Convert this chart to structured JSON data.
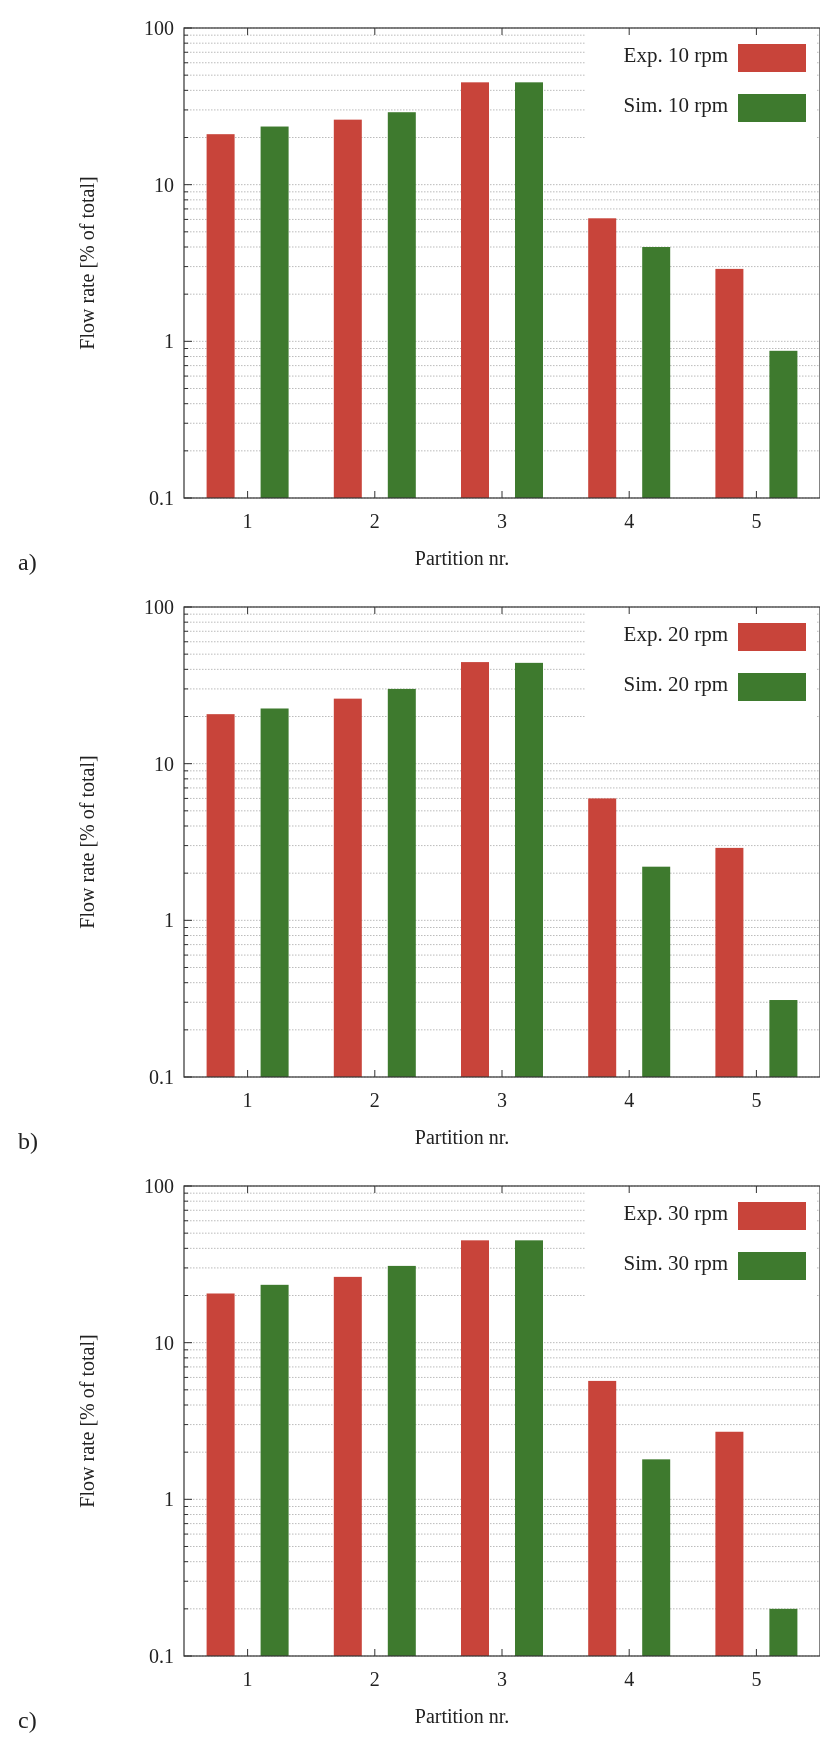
{
  "chart_data": [
    {
      "type": "bar",
      "categories": [
        "1",
        "2",
        "3",
        "4",
        "5"
      ],
      "xlabel": "Partition nr.",
      "ylabel": "Flow rate [% of total]",
      "log": true,
      "ylim": [
        0.1,
        100
      ],
      "yticks": [
        0.1,
        {
          "value": 0.2,
          "label": null
        },
        {
          "value": 0.3,
          "label": null
        },
        {
          "value": 0.4,
          "label": null
        },
        {
          "value": 0.5,
          "label": null
        },
        {
          "value": 0.6,
          "label": null
        },
        {
          "value": 0.7,
          "label": null
        },
        {
          "value": 0.8,
          "label": null
        },
        {
          "value": 0.9,
          "label": null
        },
        1,
        {
          "value": 2,
          "label": null
        },
        {
          "value": 3,
          "label": null
        },
        {
          "value": 4,
          "label": null
        },
        {
          "value": 5,
          "label": null
        },
        {
          "value": 6,
          "label": null
        },
        {
          "value": 7,
          "label": null
        },
        {
          "value": 8,
          "label": null
        },
        {
          "value": 9,
          "label": null
        },
        10,
        {
          "value": 20,
          "label": null
        },
        {
          "value": 30,
          "label": null
        },
        {
          "value": 40,
          "label": null
        },
        {
          "value": 50,
          "label": null
        },
        {
          "value": 60,
          "label": null
        },
        {
          "value": 70,
          "label": null
        },
        {
          "value": 80,
          "label": null
        },
        {
          "value": 90,
          "label": null
        },
        100
      ],
      "grid": "y",
      "legend": "top right",
      "annotations": [
        "a)"
      ],
      "series": [
        {
          "name": "Exp. 10 rpm",
          "color": "#c8443a",
          "values": [
            21,
            26,
            45,
            6.1,
            2.9
          ]
        },
        {
          "name": "Sim. 10 rpm",
          "color": "#3e7a2e",
          "values": [
            23.5,
            29,
            45,
            4.0,
            0.87
          ]
        }
      ]
    },
    {
      "type": "bar",
      "categories": [
        "1",
        "2",
        "3",
        "4",
        "5"
      ],
      "xlabel": "Partition nr.",
      "ylabel": "Flow rate [% of total]",
      "log": true,
      "ylim": [
        0.1,
        100
      ],
      "yticks": [
        0.1,
        {
          "value": 0.2,
          "label": null
        },
        {
          "value": 0.3,
          "label": null
        },
        {
          "value": 0.4,
          "label": null
        },
        {
          "value": 0.5,
          "label": null
        },
        {
          "value": 0.6,
          "label": null
        },
        {
          "value": 0.7,
          "label": null
        },
        {
          "value": 0.8,
          "label": null
        },
        {
          "value": 0.9,
          "label": null
        },
        1,
        {
          "value": 2,
          "label": null
        },
        {
          "value": 3,
          "label": null
        },
        {
          "value": 4,
          "label": null
        },
        {
          "value": 5,
          "label": null
        },
        {
          "value": 6,
          "label": null
        },
        {
          "value": 7,
          "label": null
        },
        {
          "value": 8,
          "label": null
        },
        {
          "value": 9,
          "label": null
        },
        10,
        {
          "value": 20,
          "label": null
        },
        {
          "value": 30,
          "label": null
        },
        {
          "value": 40,
          "label": null
        },
        {
          "value": 50,
          "label": null
        },
        {
          "value": 60,
          "label": null
        },
        {
          "value": 70,
          "label": null
        },
        {
          "value": 80,
          "label": null
        },
        {
          "value": 90,
          "label": null
        },
        100
      ],
      "grid": "y",
      "legend": "top right",
      "annotations": [
        "b)"
      ],
      "series": [
        {
          "name": "Exp. 20 rpm",
          "color": "#c8443a",
          "values": [
            20.7,
            26,
            44.5,
            6.0,
            2.9
          ]
        },
        {
          "name": "Sim. 20 rpm",
          "color": "#3e7a2e",
          "values": [
            22.5,
            30,
            44,
            2.2,
            0.31
          ]
        }
      ]
    },
    {
      "type": "bar",
      "categories": [
        "1",
        "2",
        "3",
        "4",
        "5"
      ],
      "xlabel": "Partition nr.",
      "ylabel": "Flow rate [% of total]",
      "log": true,
      "ylim": [
        0.1,
        100
      ],
      "yticks": [
        0.1,
        {
          "value": 0.2,
          "label": null
        },
        {
          "value": 0.3,
          "label": null
        },
        {
          "value": 0.4,
          "label": null
        },
        {
          "value": 0.5,
          "label": null
        },
        {
          "value": 0.6,
          "label": null
        },
        {
          "value": 0.7,
          "label": null
        },
        {
          "value": 0.8,
          "label": null
        },
        {
          "value": 0.9,
          "label": null
        },
        1,
        {
          "value": 2,
          "label": null
        },
        {
          "value": 3,
          "label": null
        },
        {
          "value": 4,
          "label": null
        },
        {
          "value": 5,
          "label": null
        },
        {
          "value": 6,
          "label": null
        },
        {
          "value": 7,
          "label": null
        },
        {
          "value": 8,
          "label": null
        },
        {
          "value": 9,
          "label": null
        },
        10,
        {
          "value": 20,
          "label": null
        },
        {
          "value": 30,
          "label": null
        },
        {
          "value": 40,
          "label": null
        },
        {
          "value": 50,
          "label": null
        },
        {
          "value": 60,
          "label": null
        },
        {
          "value": 70,
          "label": null
        },
        {
          "value": 80,
          "label": null
        },
        {
          "value": 90,
          "label": null
        },
        100
      ],
      "grid": "y",
      "legend": "top right",
      "annotations": [
        "c)"
      ],
      "series": [
        {
          "name": "Exp. 30 rpm",
          "color": "#c8443a",
          "values": [
            20.6,
            26.3,
            45,
            5.7,
            2.7
          ]
        },
        {
          "name": "Sim. 30 rpm",
          "color": "#3e7a2e",
          "values": [
            23.4,
            30.9,
            45,
            1.8,
            0.2
          ]
        }
      ]
    }
  ]
}
